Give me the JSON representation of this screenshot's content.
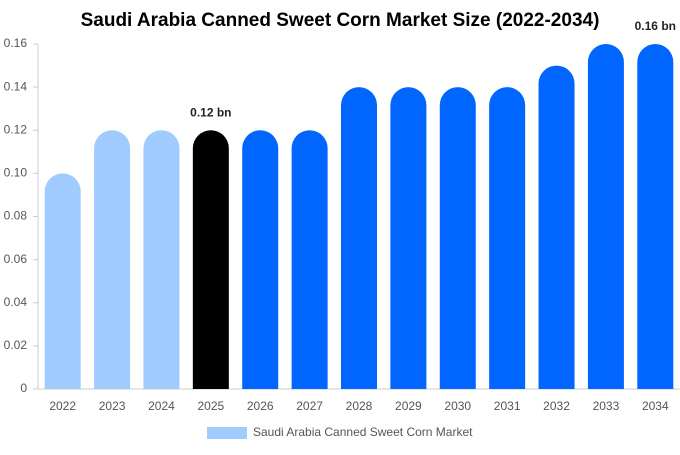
{
  "chart_data": {
    "type": "bar",
    "title": "Saudi Arabia Canned Sweet Corn Market Size (2022-2034)",
    "categories": [
      "2022",
      "2023",
      "2024",
      "2025",
      "2026",
      "2027",
      "2028",
      "2029",
      "2030",
      "2031",
      "2032",
      "2033",
      "2034"
    ],
    "series": [
      {
        "name": "Saudi Arabia Canned Sweet Corn Market",
        "color": "#a0cbff",
        "colors": [
          "#a0cbff",
          "#a0cbff",
          "#a0cbff",
          "#000000",
          "#0066ff",
          "#0066ff",
          "#0066ff",
          "#0066ff",
          "#0066ff",
          "#0066ff",
          "#0066ff",
          "#0066ff",
          "#0066ff"
        ],
        "values": [
          0.1,
          0.12,
          0.12,
          0.12,
          0.12,
          0.12,
          0.14,
          0.14,
          0.14,
          0.14,
          0.15,
          0.16,
          0.16
        ],
        "value_labels": [
          null,
          null,
          null,
          "0.12 bn",
          null,
          null,
          null,
          null,
          null,
          null,
          null,
          null,
          "0.16 bn"
        ]
      }
    ],
    "ylim": [
      0,
      0.16
    ],
    "yticks": [
      0,
      0.02,
      0.04,
      0.06,
      0.08,
      {
        "value": 0.1,
        "label": "0.10"
      },
      0.12,
      0.14,
      0.16
    ],
    "grid": false
  }
}
